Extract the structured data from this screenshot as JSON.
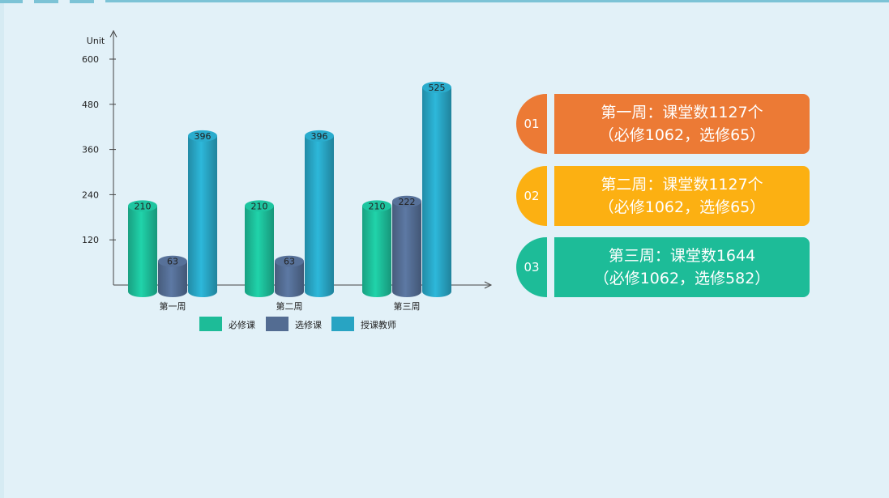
{
  "chart_data": {
    "type": "bar",
    "ylabel": "Unit",
    "ylim": [
      0,
      600
    ],
    "yticks": [
      120,
      240,
      360,
      480,
      600
    ],
    "categories": [
      "第一周",
      "第二周",
      "第三周"
    ],
    "series": [
      {
        "name": "必修课",
        "color": "#1dbc98",
        "values": [
          210,
          210,
          210
        ]
      },
      {
        "name": "选修课",
        "color": "#536c92",
        "values": [
          63,
          63,
          222
        ]
      },
      {
        "name": "授课教师",
        "color": "#28a4c3",
        "values": [
          396,
          396,
          525
        ]
      }
    ]
  },
  "cards": [
    {
      "num": "01",
      "line1": "第一周：课堂数1127个",
      "line2": "（必修1062，选修65）",
      "color": "#ec7a35"
    },
    {
      "num": "02",
      "line1": "第二周：课堂数1127个",
      "line2": "（必修1062，选修65）",
      "color": "#fcb012"
    },
    {
      "num": "03",
      "line1": "第三周：课堂数1644",
      "line2": "（必修1062，选修582）",
      "color": "#1dbc98"
    }
  ]
}
